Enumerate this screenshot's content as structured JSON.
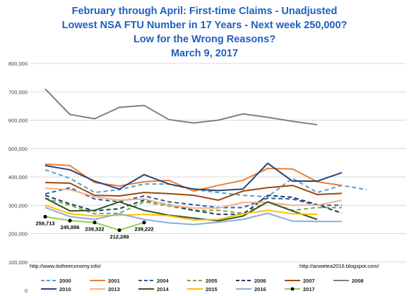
{
  "titles": {
    "line1": "February through April: First-time Claims - Unadjusted",
    "line2": "Lowest NSA FTU Number in 17 Years - Next week 250,000?",
    "line3": "Low for the Wrong Reasons?",
    "line4": "March 9, 2017"
  },
  "sources": {
    "left": "http://www.itstheeconomy.info/",
    "right": "http://anxietea2016.blogspot.com/"
  },
  "colors": {
    "title": "#1f5fbf"
  },
  "chart_data": {
    "type": "line",
    "title": "February through April: First-time Claims - Unadjusted",
    "ylim": [
      0,
      800000
    ],
    "y_ticks": [
      0,
      100000,
      200000,
      300000,
      400000,
      500000,
      600000,
      700000,
      800000
    ],
    "y_tick_labels": [
      "0",
      "100,000",
      "200,000",
      "300,000",
      "400,000",
      "500,000",
      "600,000",
      "700,000",
      "800,000"
    ],
    "grid": true,
    "legend_position": "bottom",
    "series": [
      {
        "name": "2000",
        "color": "#5b9bd5",
        "dash": "dashed",
        "values": [
          425000,
          395000,
          345000,
          355000,
          375000,
          375000,
          355000,
          345000,
          335000,
          330000,
          395000,
          345000,
          370000,
          355000
        ]
      },
      {
        "name": "2001",
        "color": "#ed7d31",
        "dash": "solid",
        "values": [
          445000,
          440000,
          380000,
          368000,
          383000,
          388000,
          350000,
          370000,
          388000,
          430000,
          428000,
          383000,
          370000
        ]
      },
      {
        "name": "2004",
        "color": "#2e5aa8",
        "dash": "dashed",
        "values": [
          340000,
          362000,
          322000,
          312000,
          333000,
          312000,
          302000,
          292000,
          292000,
          325000,
          322000,
          300000,
          300000
        ]
      },
      {
        "name": "2005",
        "color": "#70ad47",
        "dash": "dashed",
        "values": [
          325000,
          300000,
          270000,
          272000,
          312000,
          297000,
          282000,
          282000,
          272000,
          312000,
          282000,
          292000,
          292000
        ]
      },
      {
        "name": "2006",
        "color": "#1f3864",
        "dash": "dashed",
        "values": [
          335000,
          305000,
          280000,
          288000,
          318000,
          302000,
          282000,
          268000,
          268000,
          335000,
          328000,
          302000,
          272000
        ]
      },
      {
        "name": "2007",
        "color": "#9e480e",
        "dash": "solid",
        "values": [
          380000,
          378000,
          335000,
          333000,
          345000,
          341000,
          335000,
          318000,
          350000,
          362000,
          370000,
          338000,
          342000
        ]
      },
      {
        "name": "2008",
        "color": "#7f7f7f",
        "dash": "solid",
        "values": [
          710000,
          620000,
          605000,
          645000,
          652000,
          602000,
          590000,
          600000,
          622000,
          610000,
          596000,
          584000
        ]
      },
      {
        "name": "2010",
        "color": "#264478",
        "dash": "solid",
        "values": [
          440000,
          425000,
          385000,
          357000,
          408000,
          375000,
          357000,
          352000,
          357000,
          448000,
          385000,
          385000,
          415000
        ]
      },
      {
        "name": "2013",
        "color": "#f4b183",
        "dash": "solid",
        "values": [
          360000,
          355000,
          330000,
          318000,
          322000,
          300000,
          290000,
          290000,
          310000,
          310000,
          300000,
          300000,
          318000
        ]
      },
      {
        "name": "2014",
        "color": "#375623",
        "dash": "solid",
        "values": [
          325000,
          280000,
          282000,
          312000,
          282000,
          265000,
          255000,
          245000,
          262000,
          312000,
          280000,
          250000
        ]
      },
      {
        "name": "2015",
        "color": "#ffc000",
        "dash": "solid",
        "values": [
          300000,
          270000,
          262000,
          265000,
          268000,
          263000,
          248000,
          250000,
          270000,
          282000,
          270000,
          268000
        ]
      },
      {
        "name": "2016",
        "color": "#8faadc",
        "dash": "solid",
        "values": [
          292000,
          260000,
          250000,
          270000,
          250000,
          238000,
          232000,
          240000,
          250000,
          272000,
          244000,
          243000,
          243000
        ]
      },
      {
        "name": "2017",
        "color": "#92d050",
        "dash": "solid",
        "markers": true,
        "values": [
          259713,
          245886,
          239322,
          212289,
          239222
        ]
      }
    ],
    "annotations": [
      {
        "series": "2017",
        "index": 0,
        "text": "259,713"
      },
      {
        "series": "2017",
        "index": 1,
        "text": "245,886"
      },
      {
        "series": "2017",
        "index": 2,
        "text": "239,322"
      },
      {
        "series": "2017",
        "index": 3,
        "text": "212,289"
      },
      {
        "series": "2017",
        "index": 4,
        "text": "239,222"
      }
    ],
    "legend_rows": [
      [
        "2000",
        "2001",
        "2004",
        "2005",
        "2006",
        "2007",
        "2008"
      ],
      [
        "2010",
        "2013",
        "2014",
        "2015",
        "2016",
        "2017"
      ]
    ]
  }
}
